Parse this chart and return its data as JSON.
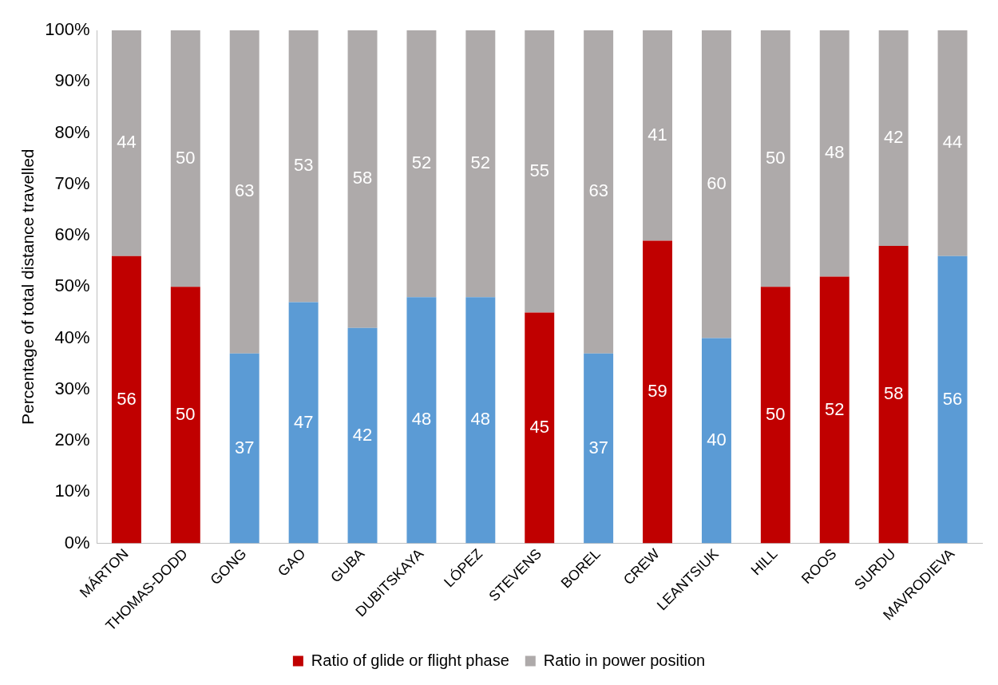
{
  "chart_data": {
    "type": "bar",
    "stacked": true,
    "ylabel": "Percentage of total distance travelled",
    "categories": [
      "MÁRTON",
      "THOMAS-DODD",
      "GONG",
      "GAO",
      "GUBA",
      "DUBITSKAYA",
      "LÓPEZ",
      "STEVENS",
      "BOREL",
      "CREW",
      "LEANTSIUK",
      "HILL",
      "ROOS",
      "SURDU",
      "MAVRODIEVA"
    ],
    "series": [
      {
        "name": "Ratio of glide or flight phase",
        "color": "#c00000",
        "colors": [
          "#c00000",
          "#c00000",
          "#5b9bd5",
          "#5b9bd5",
          "#5b9bd5",
          "#5b9bd5",
          "#5b9bd5",
          "#c00000",
          "#5b9bd5",
          "#c00000",
          "#5b9bd5",
          "#c00000",
          "#c00000",
          "#c00000",
          "#5b9bd5"
        ],
        "values": [
          56,
          50,
          37,
          47,
          42,
          48,
          48,
          45,
          37,
          59,
          40,
          50,
          52,
          58,
          56
        ]
      },
      {
        "name": "Ratio in power position",
        "color": "#aeaaaa",
        "values": [
          44,
          50,
          63,
          53,
          58,
          52,
          52,
          55,
          63,
          41,
          60,
          50,
          48,
          42,
          44
        ]
      }
    ],
    "ylim": [
      0,
      100
    ],
    "yticks": [
      {
        "value": 0,
        "label": "0%"
      },
      {
        "value": 10,
        "label": "10%"
      },
      {
        "value": 20,
        "label": "20%"
      },
      {
        "value": 30,
        "label": "30%"
      },
      {
        "value": 40,
        "label": "40%"
      },
      {
        "value": 50,
        "label": "50%"
      },
      {
        "value": 60,
        "label": "60%"
      },
      {
        "value": 70,
        "label": "70%"
      },
      {
        "value": 80,
        "label": "80%"
      },
      {
        "value": 90,
        "label": "90%"
      },
      {
        "value": 100,
        "label": "100%"
      }
    ],
    "grid": false,
    "legend": "bottom",
    "data_labels": true
  }
}
